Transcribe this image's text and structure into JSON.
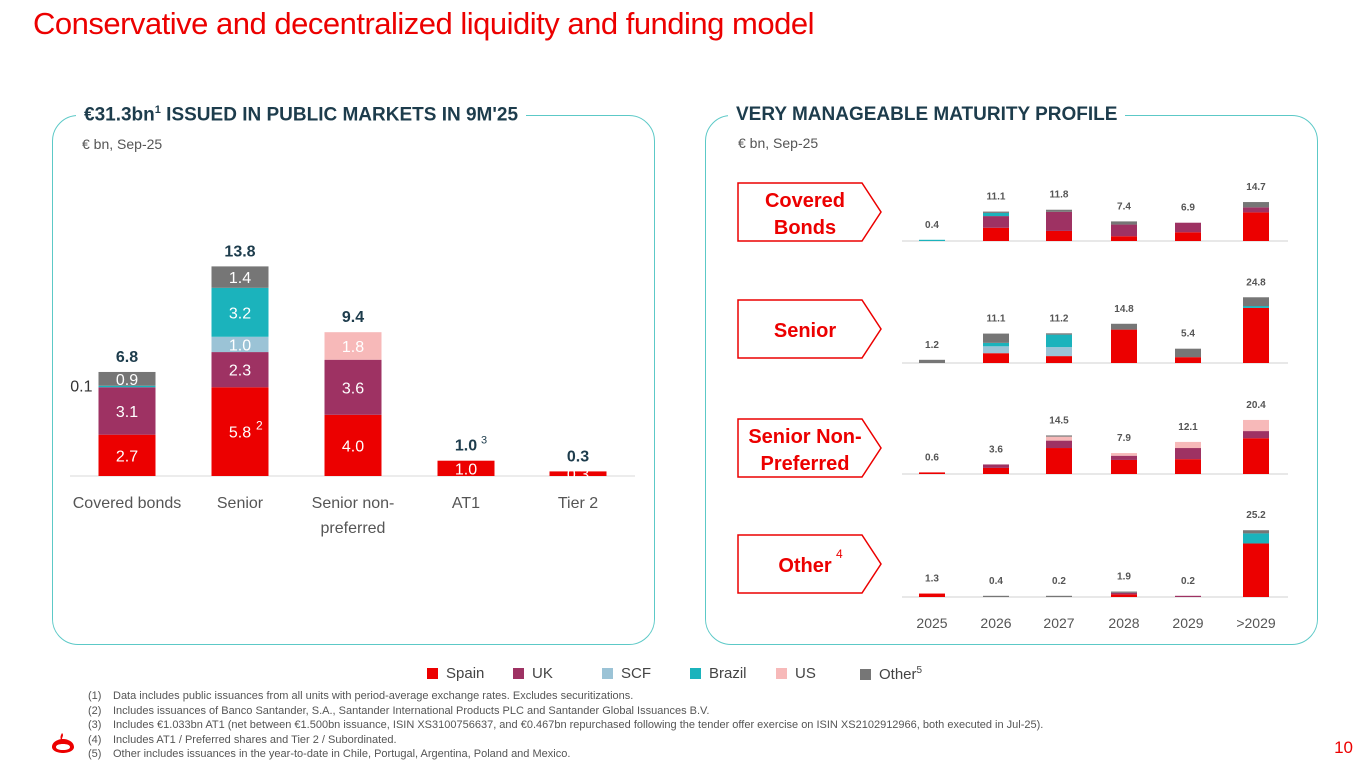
{
  "title": "Conservative and decentralized liquidity and funding model",
  "colors": {
    "Spain": "#ec0000",
    "UK": "#9e3263",
    "SCF": "#9bc3d6",
    "Brazil": "#1bb3bc",
    "US": "#f7b9b9",
    "Other": "#767676",
    "accent": "#ec0000",
    "panel_border": "#5cc9c7"
  },
  "left_panel": {
    "title_main": "€31.3bn",
    "title_sup": "1",
    "title_rest": " ISSUED IN PUBLIC MARKETS IN 9M'25",
    "subtitle": "€ bn, Sep-25"
  },
  "right_panel": {
    "title": "VERY MANAGEABLE MATURITY PROFILE",
    "subtitle": "€ bn, Sep-25",
    "row_labels": [
      {
        "line1": "Covered",
        "line2": "Bonds",
        "sup": ""
      },
      {
        "line1": "Senior",
        "line2": "",
        "sup": ""
      },
      {
        "line1": "Senior Non-",
        "line2": "Preferred",
        "sup": ""
      },
      {
        "line1": "Other",
        "line2": "",
        "sup": "4"
      }
    ]
  },
  "chart_data": [
    {
      "type": "bar",
      "stacked": true,
      "title": "€31.3bn ISSUED IN PUBLIC MARKETS IN 9M'25",
      "unit": "€ bn, Sep-25",
      "categories": [
        "Covered bonds",
        "Senior",
        "Senior non-preferred",
        "AT1",
        "Tier 2"
      ],
      "category_labels": [
        [
          "Covered bonds"
        ],
        [
          "Senior"
        ],
        [
          "Senior non-",
          "preferred"
        ],
        [
          "AT1"
        ],
        [
          "Tier 2"
        ]
      ],
      "series": [
        {
          "name": "Spain",
          "values": [
            2.7,
            5.8,
            4.0,
            1.0,
            0.3
          ]
        },
        {
          "name": "UK",
          "values": [
            3.1,
            2.3,
            3.6,
            0,
            0
          ]
        },
        {
          "name": "SCF",
          "values": [
            0,
            1.0,
            0,
            0,
            0
          ]
        },
        {
          "name": "Brazil",
          "values": [
            0,
            3.2,
            0,
            0,
            0
          ]
        },
        {
          "name": "US",
          "values": [
            0,
            0,
            1.8,
            0,
            0
          ]
        },
        {
          "name": "Other",
          "values": [
            0.9,
            1.4,
            0,
            0,
            0
          ]
        }
      ],
      "hidden_labels": [
        [
          false,
          false,
          false,
          false,
          false
        ],
        [
          false,
          false,
          false,
          true,
          true
        ],
        [
          false,
          false,
          false,
          false,
          false
        ],
        [
          false,
          false,
          false,
          false,
          false
        ],
        [
          false,
          false,
          false,
          false,
          false
        ],
        [
          false,
          false,
          false,
          false,
          false
        ]
      ],
      "extra_segments": [
        {
          "category": "Covered bonds",
          "series": "Brazil",
          "value": 0.1,
          "label": "0.1"
        }
      ],
      "segment_notes": [
        {
          "category": "Senior",
          "series": "Spain",
          "note": "2"
        }
      ],
      "totals": [
        "6.8",
        "13.8",
        "9.4",
        "1.0",
        "0.3"
      ],
      "total_sups": [
        "",
        "",
        "",
        "3",
        ""
      ],
      "ylim": [
        0,
        16
      ]
    },
    {
      "type": "bar",
      "stacked": true,
      "title": "VERY MANAGEABLE MATURITY PROFILE",
      "unit": "€ bn, Sep-25",
      "categories": [
        "2025",
        "2026",
        "2027",
        "2028",
        "2029",
        ">2029"
      ],
      "series_names": [
        "Spain",
        "UK",
        "SCF",
        "Brazil",
        "US",
        "Other"
      ],
      "panels": [
        {
          "name": "Covered Bonds",
          "totals": [
            "0.4",
            "11.1",
            "11.8",
            "7.4",
            "6.9",
            "14.7"
          ],
          "segments": [
            [
              0,
              0,
              0,
              0.4,
              0,
              0
            ],
            [
              5.0,
              4.4,
              0,
              1.2,
              0,
              0.5
            ],
            [
              3.8,
              7.2,
              0,
              0,
              0,
              0.8
            ],
            [
              1.8,
              4.4,
              0,
              0,
              0,
              1.2
            ],
            [
              3.3,
              3.6,
              0,
              0,
              0,
              0
            ],
            [
              10.8,
              1.9,
              0,
              0,
              0,
              2.0
            ]
          ]
        },
        {
          "name": "Senior",
          "totals": [
            "1.2",
            "11.1",
            "11.2",
            "14.8",
            "5.4",
            "24.8"
          ],
          "segments": [
            [
              0,
              0,
              0,
              0,
              0,
              1.2
            ],
            [
              3.7,
              0,
              2.6,
              1.3,
              0,
              3.5
            ],
            [
              2.6,
              0,
              3.4,
              4.7,
              0,
              0.5
            ],
            [
              12.6,
              0,
              0,
              0,
              0,
              2.2
            ],
            [
              2.2,
              0,
              0,
              0,
              0,
              3.2
            ],
            [
              20.8,
              0,
              0,
              0.7,
              0,
              3.3
            ]
          ]
        },
        {
          "name": "Senior Non-Preferred",
          "totals": [
            "0.6",
            "3.6",
            "14.5",
            "7.9",
            "12.1",
            "20.4"
          ],
          "segments": [
            [
              0.6,
              0,
              0,
              0,
              0,
              0
            ],
            [
              2.3,
              1.3,
              0,
              0,
              0,
              0
            ],
            [
              9.8,
              2.8,
              0,
              0,
              1.5,
              0.4
            ],
            [
              5.3,
              1.6,
              0,
              0,
              1.0,
              0
            ],
            [
              5.6,
              4.2,
              0,
              0,
              2.3,
              0
            ],
            [
              13.5,
              2.7,
              0,
              0,
              4.2,
              0
            ]
          ]
        },
        {
          "name": "Other",
          "totals": [
            "1.3",
            "0.4",
            "0.2",
            "1.9",
            "0.2",
            "25.2"
          ],
          "segments": [
            [
              1.3,
              0,
              0,
              0,
              0,
              0
            ],
            [
              0,
              0,
              0,
              0,
              0,
              0.4
            ],
            [
              0,
              0,
              0,
              0,
              0,
              0.2
            ],
            [
              1.0,
              0.6,
              0,
              0,
              0,
              0.3
            ],
            [
              0,
              0.2,
              0,
              0,
              0,
              0
            ],
            [
              20.2,
              0,
              0,
              3.8,
              0,
              1.2
            ]
          ]
        }
      ]
    }
  ],
  "legend": [
    {
      "name": "Spain",
      "label": "Spain",
      "sup": ""
    },
    {
      "name": "UK",
      "label": "UK",
      "sup": ""
    },
    {
      "name": "SCF",
      "label": "SCF",
      "sup": ""
    },
    {
      "name": "Brazil",
      "label": "Brazil",
      "sup": ""
    },
    {
      "name": "US",
      "label": "US",
      "sup": ""
    },
    {
      "name": "Other",
      "label": "Other",
      "sup": "5"
    }
  ],
  "footnotes": [
    {
      "num": "(1)",
      "text": "Data includes public issuances from all units with period-average exchange rates. Excludes securitizations."
    },
    {
      "num": "(2)",
      "text": "Includes issuances of Banco Santander, S.A., Santander International Products PLC and Santander Global Issuances B.V."
    },
    {
      "num": "(3)",
      "text": "Includes €1.033bn AT1 (net between €1.500bn issuance, ISIN XS3100756637, and €0.467bn repurchased following the tender offer exercise on ISIN XS2102912966, both executed in Jul-25)."
    },
    {
      "num": "(4)",
      "text": "Includes AT1 / Preferred shares and Tier 2 / Subordinated."
    },
    {
      "num": "(5)",
      "text": "Other includes issuances in the year-to-date in Chile, Portugal, Argentina, Poland and Mexico."
    }
  ],
  "page_number": "10"
}
